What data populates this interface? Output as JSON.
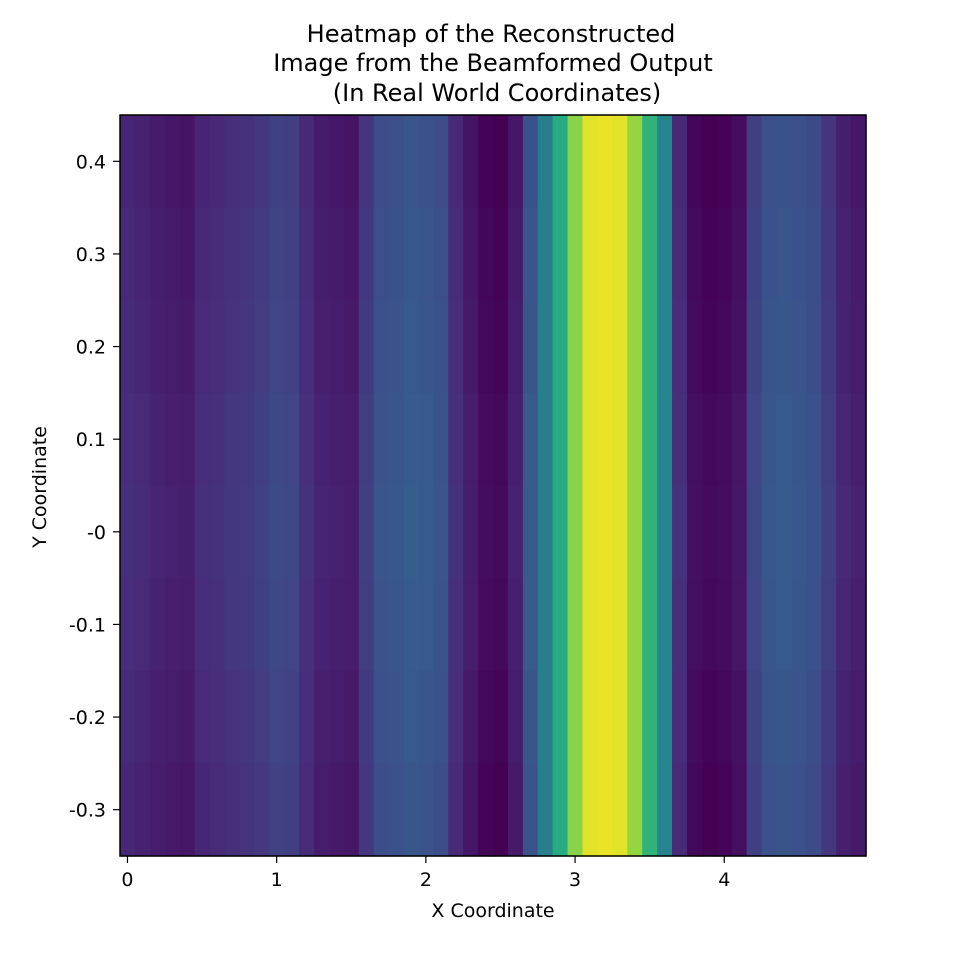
{
  "chart_data": {
    "type": "heatmap",
    "title_lines": [
      "Heatmap of the Reconstructed",
      "Image from the Beamformed Output",
      "(In Real World Coordinates)"
    ],
    "xlabel": "X Coordinate",
    "ylabel": "Y Coordinate",
    "xlim": [
      -0.05,
      4.95
    ],
    "ylim": [
      -0.35,
      0.45
    ],
    "x_ticks": [
      {
        "value": 0,
        "label": "0"
      },
      {
        "value": 1,
        "label": "1"
      },
      {
        "value": 2,
        "label": "2"
      },
      {
        "value": 3,
        "label": "3"
      },
      {
        "value": 4,
        "label": "4"
      }
    ],
    "y_ticks": [
      {
        "value": 0.4,
        "label": "0.4"
      },
      {
        "value": 0.3,
        "label": "0.3"
      },
      {
        "value": 0.2,
        "label": "0.2"
      },
      {
        "value": 0.1,
        "label": "0.1"
      },
      {
        "value": 0.0,
        "label": "-0"
      },
      {
        "value": -0.1,
        "label": "-0.1"
      },
      {
        "value": -0.2,
        "label": "-0.2"
      },
      {
        "value": -0.3,
        "label": "-0.3"
      }
    ],
    "colormap": "viridis",
    "x_centers": [
      0.0,
      0.1,
      0.2,
      0.3,
      0.4,
      0.5,
      0.6,
      0.7,
      0.8,
      0.9,
      1.0,
      1.1,
      1.2,
      1.3,
      1.4,
      1.5,
      1.6,
      1.7,
      1.8,
      1.9,
      2.0,
      2.1,
      2.2,
      2.3,
      2.4,
      2.5,
      2.6,
      2.7,
      2.8,
      2.9,
      3.0,
      3.1,
      3.2,
      3.3,
      3.4,
      3.5,
      3.6,
      3.7,
      3.8,
      3.9,
      4.0,
      4.1,
      4.2,
      4.3,
      4.4,
      4.5,
      4.6,
      4.7,
      4.8,
      4.9
    ],
    "y_centers": [
      0.4,
      0.3,
      0.2,
      0.1,
      0.0,
      -0.1,
      -0.2,
      -0.3
    ],
    "column_values": [
      0.12,
      0.11,
      0.09,
      0.08,
      0.07,
      0.12,
      0.13,
      0.15,
      0.16,
      0.18,
      0.21,
      0.2,
      0.13,
      0.09,
      0.08,
      0.07,
      0.17,
      0.25,
      0.26,
      0.28,
      0.27,
      0.25,
      0.13,
      0.07,
      0.02,
      0.01,
      0.08,
      0.27,
      0.43,
      0.62,
      0.82,
      0.96,
      0.97,
      0.96,
      0.84,
      0.65,
      0.45,
      0.13,
      0.03,
      0.01,
      0.02,
      0.05,
      0.2,
      0.26,
      0.27,
      0.26,
      0.24,
      0.17,
      0.1,
      0.08
    ],
    "row_offsets": [
      -0.015,
      -0.005,
      0.0,
      0.01,
      0.015,
      0.01,
      0.0,
      -0.01
    ]
  }
}
